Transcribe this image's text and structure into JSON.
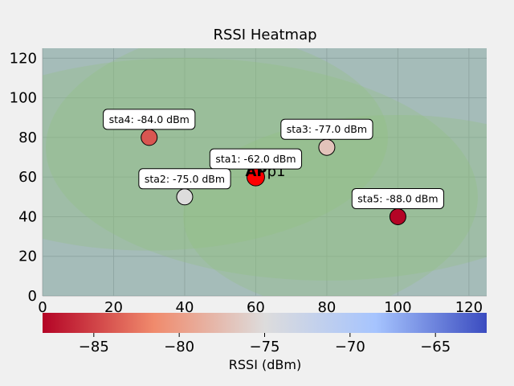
{
  "chart_data": {
    "type": "heatmap",
    "title": "RSSI Heatmap",
    "xlim": [
      0,
      125
    ],
    "ylim": [
      0,
      125
    ],
    "x_ticks": [
      0,
      20,
      40,
      60,
      80,
      100,
      120
    ],
    "y_ticks": [
      0,
      20,
      40,
      60,
      80,
      100,
      120
    ],
    "grid": true,
    "access_point": {
      "name": "AP1",
      "label_prefix": "AP",
      "label_rest": "p1",
      "x": 60,
      "y": 60,
      "color": "#ff0000"
    },
    "stations": [
      {
        "name": "sta1",
        "x": 60,
        "y": 60,
        "rssi": -62.0,
        "label": "sta1: -62.0 dBm"
      },
      {
        "name": "sta2",
        "x": 40,
        "y": 50,
        "rssi": -75.0,
        "label": "sta2: -75.0 dBm"
      },
      {
        "name": "sta3",
        "x": 80,
        "y": 75,
        "rssi": -77.0,
        "label": "sta3: -77.0 dBm"
      },
      {
        "name": "sta4",
        "x": 30,
        "y": 80,
        "rssi": -84.0,
        "label": "sta4: -84.0 dBm"
      },
      {
        "name": "sta5",
        "x": 100,
        "y": 40,
        "rssi": -88.0,
        "label": "sta5: -88.0 dBm"
      }
    ],
    "colorbar": {
      "label": "RSSI (dBm)",
      "colormap": "coolwarm_r",
      "range": [
        -88.0,
        -62.0
      ],
      "ticks": [
        -85,
        -80,
        -75,
        -70,
        -65
      ],
      "tick_labels": [
        "−85",
        "−80",
        "−75",
        "−70",
        "−65"
      ]
    }
  }
}
